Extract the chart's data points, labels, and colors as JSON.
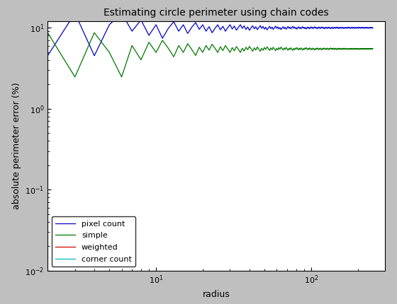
{
  "title": "Estimating circle perimeter using chain codes",
  "xlabel": "radius",
  "ylabel": "absolute perimeter error (%)",
  "xlim": [
    2,
    300
  ],
  "ylim": [
    0.01,
    12
  ],
  "legend_labels": [
    "pixel count",
    "simple",
    "weighted",
    "corner count"
  ],
  "line_colors": [
    "#0000cc",
    "#007700",
    "#cc0000",
    "#00bbbb"
  ],
  "background_color": "#ffffff",
  "fig_bg_color": "#bfbfbf",
  "title_fontsize": 10,
  "label_fontsize": 9,
  "tick_fontsize": 8
}
